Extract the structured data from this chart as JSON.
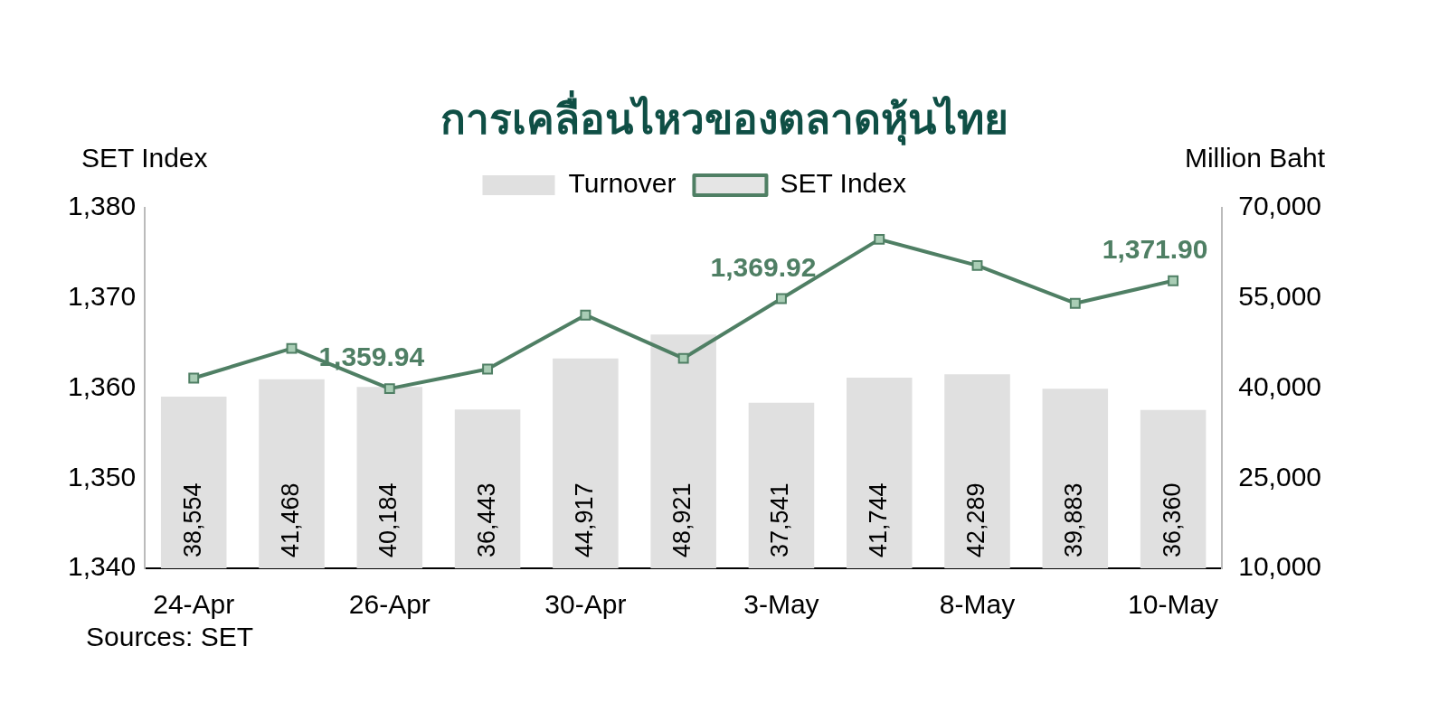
{
  "chart_data": {
    "type": "bar",
    "title": "การเคลื่อนไหวของตลาดหุ้นไทย",
    "ylabel": "SET Index",
    "y2label": "Million Baht",
    "categories": [
      "24-Apr",
      null,
      "26-Apr",
      null,
      "30-Apr",
      null,
      "3-May",
      null,
      "8-May",
      null,
      "10-May"
    ],
    "series": [
      {
        "name": "Turnover",
        "axis": "y2",
        "color": "#e0e0e0",
        "values": [
          38554,
          41468,
          40184,
          36443,
          44917,
          48921,
          37541,
          41744,
          42289,
          39883,
          36360
        ],
        "value_labels": [
          "38,554",
          "41,468",
          "40,184",
          "36,443",
          "44,917",
          "48,921",
          "37,541",
          "41,744",
          "42,289",
          "39,883",
          "36,360"
        ]
      },
      {
        "name": "SET Index",
        "type": "line",
        "color": "#4f7f64",
        "marker": "square",
        "values": [
          1361.1,
          1364.4,
          1359.94,
          1362.1,
          1368.1,
          1363.3,
          1369.92,
          1376.5,
          1373.6,
          1369.4,
          1371.9
        ],
        "value_labels": [
          null,
          null,
          "1,359.94",
          null,
          null,
          null,
          "1,369.92",
          null,
          null,
          null,
          "1,371.90"
        ]
      }
    ],
    "ylim": [
      1340,
      1380
    ],
    "yticks": [
      {
        "value": 1340,
        "label": "1,340"
      },
      {
        "value": 1350,
        "label": "1,350"
      },
      {
        "value": 1360,
        "label": "1,360"
      },
      {
        "value": 1370,
        "label": "1,370"
      },
      {
        "value": 1380,
        "label": "1,380"
      }
    ],
    "y2lim": [
      10000,
      70000
    ],
    "y2ticks": [
      {
        "value": 10000,
        "label": "10,000"
      },
      {
        "value": 25000,
        "label": "25,000"
      },
      {
        "value": 40000,
        "label": "40,000"
      },
      {
        "value": 55000,
        "label": "55,000"
      },
      {
        "value": 70000,
        "label": "70,000"
      }
    ],
    "grid": false,
    "legend": "top",
    "annotations": [
      "Sources: SET"
    ]
  }
}
